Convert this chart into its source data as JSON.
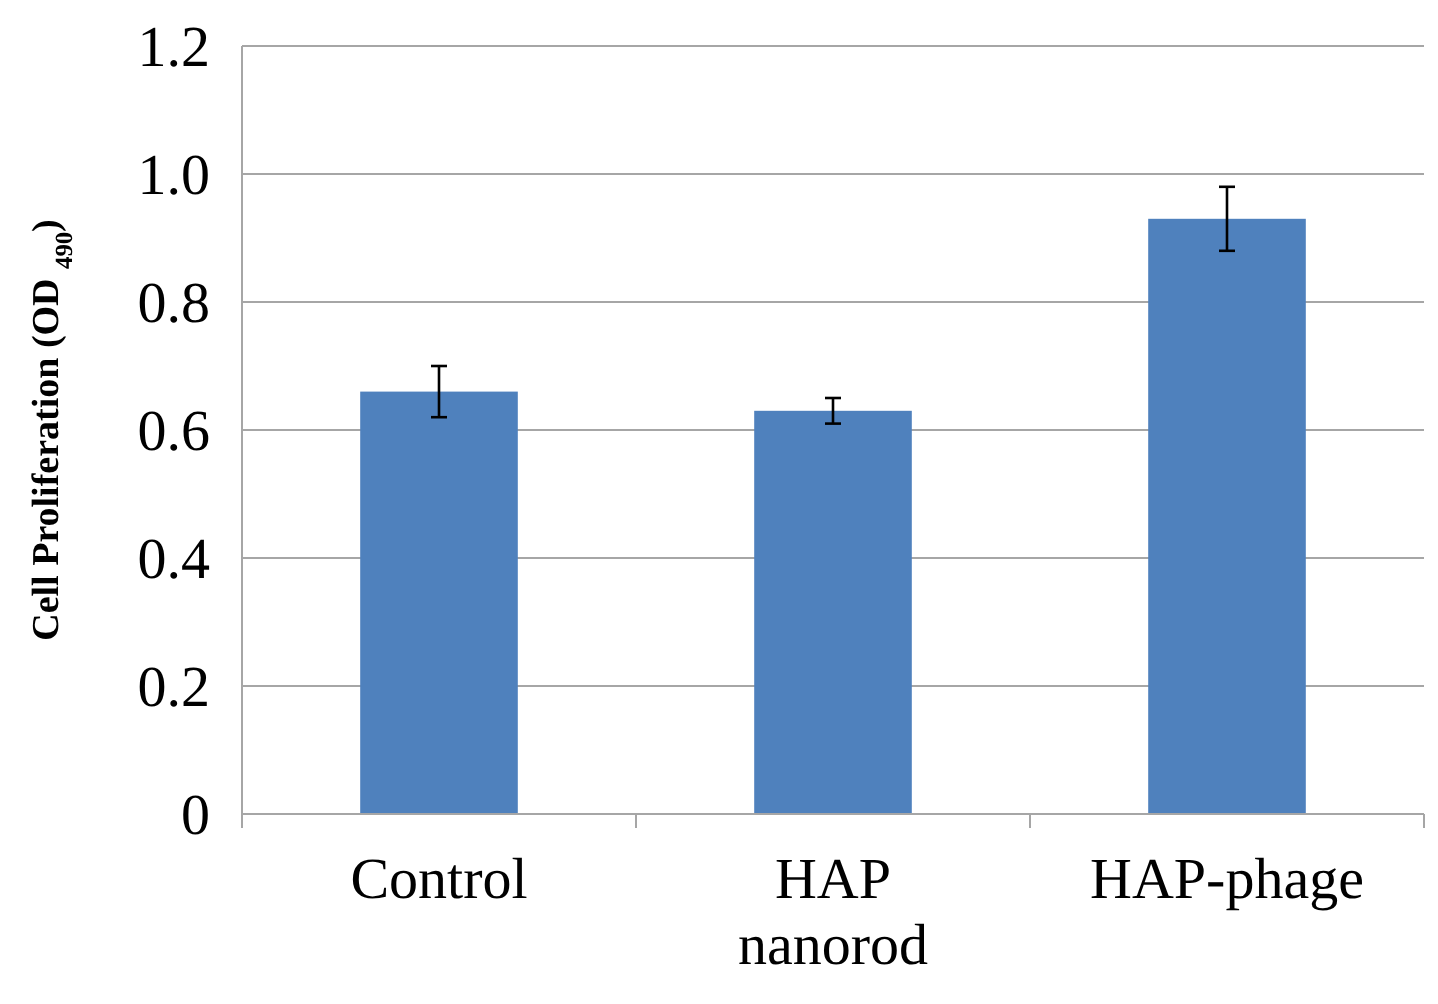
{
  "chart_data": {
    "type": "bar",
    "ylabel": "Cell Proliferation (OD $_{490}$)",
    "categories": [
      "Control",
      "HAP nanorod",
      "HAP-phage"
    ],
    "values": [
      0.66,
      0.63,
      0.93
    ],
    "errors": [
      0.04,
      0.02,
      0.05
    ],
    "color": "#4f81bd",
    "ylim": [
      0,
      1.2
    ],
    "yticks": [
      0,
      {
        "value": 0.2,
        "label": "0.2"
      },
      {
        "value": 0.4,
        "label": "0.4"
      },
      {
        "value": 0.6,
        "label": "0.6"
      },
      {
        "value": 0.8,
        "label": "0.8"
      },
      {
        "value": 1.0,
        "label": "1.0"
      },
      {
        "value": 1.2,
        "label": "1.2"
      }
    ],
    "grid": "y"
  }
}
